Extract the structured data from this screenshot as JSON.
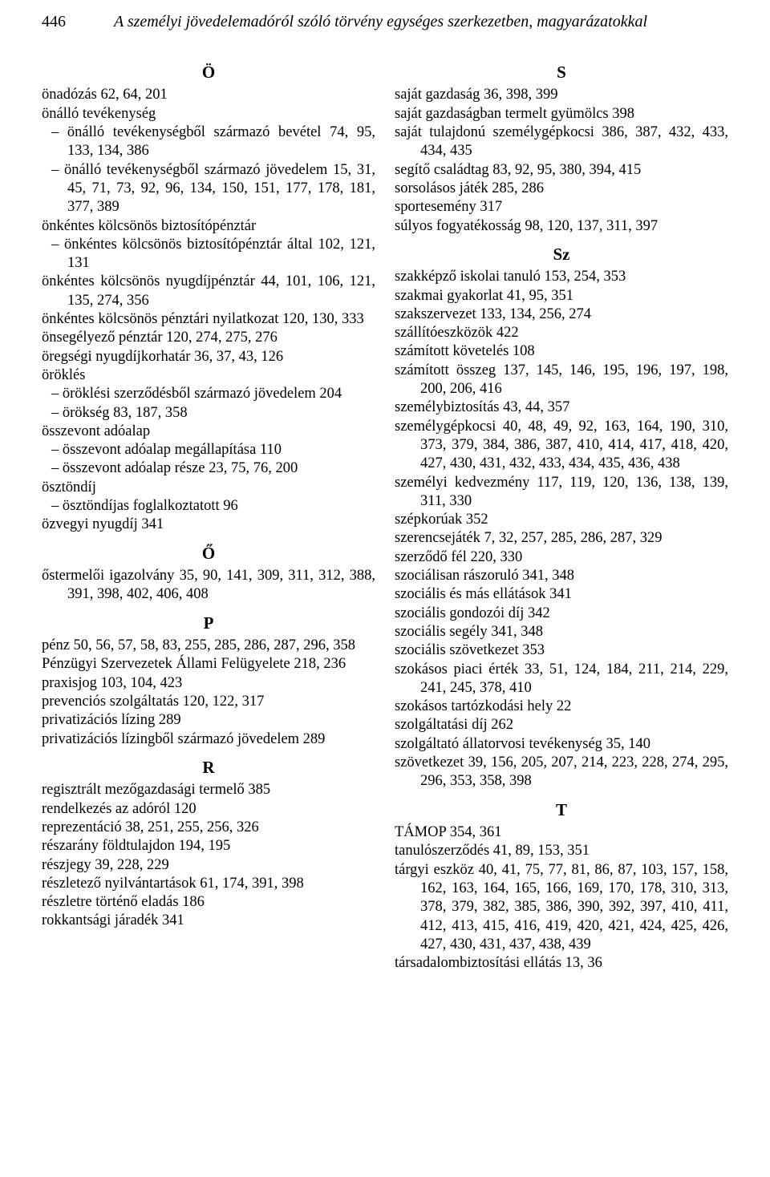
{
  "page_number": "446",
  "running_title": "A személyi jövedelemadóról szóló törvény egységes szerkezetben, magyarázatokkal",
  "left": {
    "sections": [
      {
        "letter": "Ö",
        "lines": [
          {
            "t": "entry",
            "text": "önadózás  62, 64, 201"
          },
          {
            "t": "entry",
            "text": "önálló tevékenység"
          },
          {
            "t": "sub",
            "text": "– önálló tevékenységből származó bevétel   74, 95, 133, 134, 386"
          },
          {
            "t": "sub",
            "text": "– önálló tevékenységből származó jövedelem   15, 31, 45, 71, 73, 92, 96, 134, 150, 151, 177, 178, 181, 377, 389"
          },
          {
            "t": "entry",
            "text": "önkéntes kölcsönös biztosítópénztár"
          },
          {
            "t": "sub",
            "text": "– önkéntes kölcsönös biztosítópénztár által   102, 121, 131"
          },
          {
            "t": "entry",
            "text": "önkéntes kölcsönös nyugdíjpénztár  44, 101, 106, 121, 135, 274, 356"
          },
          {
            "t": "entry",
            "text": "önkéntes kölcsönös pénztári nyilatkozat  120, 130, 333"
          },
          {
            "t": "entry",
            "text": "önsegélyező pénztár  120, 274, 275, 276"
          },
          {
            "t": "entry",
            "text": "öregségi nyugdíjkorhatár  36, 37, 43, 126"
          },
          {
            "t": "entry",
            "text": "öröklés"
          },
          {
            "t": "sub",
            "text": "– öröklési szerződésből származó jövedelem  204"
          },
          {
            "t": "sub",
            "text": "– örökség  83, 187, 358"
          },
          {
            "t": "entry",
            "text": "összevont adóalap"
          },
          {
            "t": "sub",
            "text": "– összevont adóalap megállapítása  110"
          },
          {
            "t": "sub",
            "text": "– összevont adóalap része  23, 75, 76, 200"
          },
          {
            "t": "entry",
            "text": "ösztöndíj"
          },
          {
            "t": "sub",
            "text": "– ösztöndíjas foglalkoztatott  96"
          },
          {
            "t": "entry",
            "text": "özvegyi nyugdíj  341"
          }
        ]
      },
      {
        "letter": "Ő",
        "lines": [
          {
            "t": "entry",
            "text": "őstermelői igazolvány  35, 90, 141, 309, 311, 312, 388, 391, 398, 402, 406, 408"
          }
        ]
      },
      {
        "letter": "P",
        "lines": [
          {
            "t": "entry",
            "text": "pénz  50, 56, 57, 58, 83, 255, 285, 286, 287, 296, 358"
          },
          {
            "t": "entry",
            "text": "Pénzügyi Szervezetek Állami Felügyelete  218, 236"
          },
          {
            "t": "entry",
            "text": "praxisjog  103, 104, 423"
          },
          {
            "t": "entry",
            "text": "prevenciós szolgáltatás  120, 122, 317"
          },
          {
            "t": "entry",
            "text": "privatizációs lízing  289"
          },
          {
            "t": "entry",
            "text": "privatizációs lízingből származó jövedelem  289"
          }
        ]
      },
      {
        "letter": "R",
        "lines": [
          {
            "t": "entry",
            "text": "regisztrált mezőgazdasági termelő  385"
          },
          {
            "t": "entry",
            "text": "rendelkezés az adóról  120"
          },
          {
            "t": "entry",
            "text": "reprezentáció  38, 251, 255, 256, 326"
          },
          {
            "t": "entry",
            "text": "részarány földtulajdon  194, 195"
          },
          {
            "t": "entry",
            "text": "részjegy  39, 228, 229"
          },
          {
            "t": "entry",
            "text": "részletező nyilvántartások  61, 174, 391, 398"
          },
          {
            "t": "entry",
            "text": "részletre történő eladás  186"
          },
          {
            "t": "entry",
            "text": "rokkantsági járadék  341"
          }
        ]
      }
    ]
  },
  "right": {
    "sections": [
      {
        "letter": "S",
        "lines": [
          {
            "t": "entry",
            "text": "saját gazdaság  36, 398, 399"
          },
          {
            "t": "entry",
            "text": "saját gazdaságban termelt gyümölcs  398"
          },
          {
            "t": "entry",
            "text": "saját tulajdonú személygépkocsi   386, 387, 432, 433, 434, 435"
          },
          {
            "t": "entry",
            "text": "segítő családtag  83, 92, 95, 380, 394, 415"
          },
          {
            "t": "entry",
            "text": "sorsolásos játék  285, 286"
          },
          {
            "t": "entry",
            "text": "sportesemény  317"
          },
          {
            "t": "entry",
            "text": "súlyos fogyatékosság  98, 120, 137, 311, 397"
          }
        ]
      },
      {
        "letter": "Sz",
        "lines": [
          {
            "t": "entry",
            "text": "szakképző iskolai tanuló  153, 254, 353"
          },
          {
            "t": "entry",
            "text": "szakmai gyakorlat  41, 95, 351"
          },
          {
            "t": "entry",
            "text": "szakszervezet  133, 134, 256, 274"
          },
          {
            "t": "entry",
            "text": "szállítóeszközök  422"
          },
          {
            "t": "entry",
            "text": "számított követelés  108"
          },
          {
            "t": "entry",
            "text": "számított összeg  137, 145, 146, 195, 196, 197, 198, 200, 206, 416"
          },
          {
            "t": "entry",
            "text": "személybiztosítás  43, 44, 357"
          },
          {
            "t": "entry",
            "text": "személygépkocsi   40, 48, 49, 92, 163, 164, 190, 310, 373, 379, 384, 386, 387, 410, 414, 417, 418, 420, 427, 430, 431, 432, 433, 434, 435, 436, 438"
          },
          {
            "t": "entry",
            "text": "személyi kedvezmény   117, 119, 120, 136, 138, 139, 311, 330"
          },
          {
            "t": "entry",
            "text": "szépkorúak  352"
          },
          {
            "t": "entry",
            "text": "szerencsejáték  7, 32, 257, 285, 286, 287, 329"
          },
          {
            "t": "entry",
            "text": "szerződő fél  220, 330"
          },
          {
            "t": "entry",
            "text": "szociálisan rászoruló  341, 348"
          },
          {
            "t": "entry",
            "text": "szociális és más ellátások  341"
          },
          {
            "t": "entry",
            "text": "szociális gondozói díj  342"
          },
          {
            "t": "entry",
            "text": "szociális segély  341, 348"
          },
          {
            "t": "entry",
            "text": "szociális szövetkezet  353"
          },
          {
            "t": "entry",
            "text": "szokásos piaci érték   33, 51, 124, 184, 211, 214, 229, 241, 245, 378, 410"
          },
          {
            "t": "entry",
            "text": "szokásos tartózkodási hely  22"
          },
          {
            "t": "entry",
            "text": "szolgáltatási díj  262"
          },
          {
            "t": "entry",
            "text": "szolgáltató állatorvosi tevékenység  35, 140"
          },
          {
            "t": "entry",
            "text": "szövetkezet  39, 156, 205, 207, 214, 223, 228, 274, 295, 296, 353, 358, 398"
          }
        ]
      },
      {
        "letter": "T",
        "lines": [
          {
            "t": "entry",
            "text": "TÁMOP  354, 361"
          },
          {
            "t": "entry",
            "text": "tanulószerződés  41, 89, 153, 351"
          },
          {
            "t": "entry",
            "text": "tárgyi eszköz   40, 41, 75, 77, 81, 86, 87, 103, 157, 158, 162, 163, 164, 165, 166, 169, 170, 178, 310, 313, 378, 379, 382, 385, 386, 390, 392, 397, 410, 411, 412, 413, 415, 416, 419, 420, 421, 424, 425, 426, 427, 430, 431, 437, 438, 439"
          },
          {
            "t": "entry",
            "text": "társadalombiztosítási ellátás  13, 36"
          }
        ]
      }
    ]
  }
}
